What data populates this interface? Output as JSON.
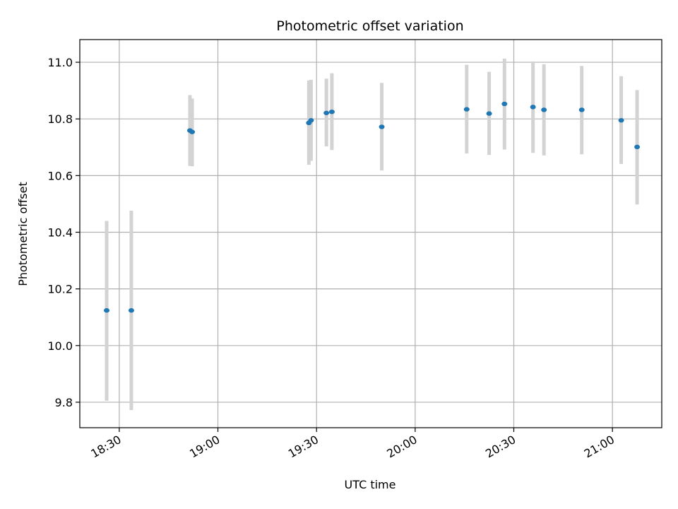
{
  "chart_data": {
    "type": "scatter",
    "title": "Photometric offset variation",
    "xlabel": "UTC time",
    "ylabel": "Photometric offset",
    "x_unit": "time of day (HH:MM)",
    "xlim": [
      "18:18",
      "21:15"
    ],
    "ylim": [
      9.71,
      11.08
    ],
    "xticks": [
      "18:30",
      "19:00",
      "19:30",
      "20:00",
      "20:30",
      "21:00"
    ],
    "yticks": [
      "9.8",
      "10.0",
      "10.2",
      "10.4",
      "10.6",
      "10.8",
      "11.0"
    ],
    "grid": true,
    "point_color": "#1f77b4",
    "errorbar_color": "#d3d3d3",
    "points": [
      {
        "x": "18:26:10",
        "y": 10.124,
        "ylow": 9.805,
        "yhigh": 10.44
      },
      {
        "x": "18:33:40",
        "y": 10.124,
        "ylow": 9.772,
        "yhigh": 10.476
      },
      {
        "x": "18:51:30",
        "y": 10.759,
        "ylow": 10.634,
        "yhigh": 10.884
      },
      {
        "x": "18:52:10",
        "y": 10.754,
        "ylow": 10.633,
        "yhigh": 10.872
      },
      {
        "x": "19:27:40",
        "y": 10.786,
        "ylow": 10.638,
        "yhigh": 10.936
      },
      {
        "x": "19:28:20",
        "y": 10.795,
        "ylow": 10.652,
        "yhigh": 10.938
      },
      {
        "x": "19:33:00",
        "y": 10.821,
        "ylow": 10.703,
        "yhigh": 10.942
      },
      {
        "x": "19:34:40",
        "y": 10.825,
        "ylow": 10.69,
        "yhigh": 10.961
      },
      {
        "x": "19:49:50",
        "y": 10.772,
        "ylow": 10.618,
        "yhigh": 10.927
      },
      {
        "x": "20:15:40",
        "y": 10.834,
        "ylow": 10.678,
        "yhigh": 10.991
      },
      {
        "x": "20:22:30",
        "y": 10.819,
        "ylow": 10.673,
        "yhigh": 10.966
      },
      {
        "x": "20:27:10",
        "y": 10.853,
        "ylow": 10.692,
        "yhigh": 11.013
      },
      {
        "x": "20:35:50",
        "y": 10.842,
        "ylow": 10.68,
        "yhigh": 11.003
      },
      {
        "x": "20:39:10",
        "y": 10.832,
        "ylow": 10.671,
        "yhigh": 10.993
      },
      {
        "x": "20:50:40",
        "y": 10.832,
        "ylow": 10.675,
        "yhigh": 10.987
      },
      {
        "x": "21:02:40",
        "y": 10.795,
        "ylow": 10.641,
        "yhigh": 10.951
      },
      {
        "x": "21:07:30",
        "y": 10.701,
        "ylow": 10.498,
        "yhigh": 10.902
      }
    ]
  }
}
